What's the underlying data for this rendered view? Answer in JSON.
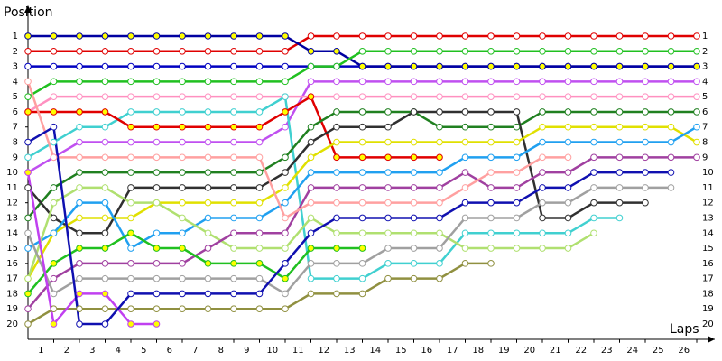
{
  "chart_data": {
    "type": "line",
    "y_label": "Position",
    "x_label": "Laps",
    "x": [
      0,
      1,
      2,
      3,
      4,
      5,
      6,
      7,
      8,
      9,
      10,
      11,
      12,
      13,
      14,
      15,
      16,
      17,
      18,
      19,
      20,
      21,
      22,
      23,
      24,
      25,
      26
    ],
    "xlim": [
      0,
      26
    ],
    "xticks": [
      1,
      2,
      3,
      4,
      5,
      6,
      7,
      8,
      9,
      10,
      11,
      12,
      13,
      14,
      15,
      16,
      17,
      18,
      19,
      20,
      21,
      22,
      23,
      24,
      25,
      26
    ],
    "ylim": [
      0,
      21
    ],
    "y_inverted": true,
    "yticks": [
      1,
      2,
      3,
      4,
      5,
      6,
      7,
      8,
      9,
      10,
      11,
      12,
      13,
      14,
      15,
      16,
      17,
      18,
      19,
      20
    ],
    "series": [
      {
        "color": "#e00000",
        "marker_color": "#ffffff",
        "values": [
          2,
          2,
          2,
          2,
          2,
          2,
          2,
          2,
          2,
          2,
          2,
          1,
          1,
          1,
          1,
          1,
          1,
          1,
          1,
          1,
          1,
          1,
          1,
          1,
          1,
          1,
          1
        ]
      },
      {
        "color": "#0000c0",
        "marker_color": "#ffffff",
        "values": [
          3,
          3,
          3,
          3,
          3,
          3,
          3,
          3,
          3,
          3,
          3,
          3,
          3,
          3,
          3,
          3,
          3,
          3,
          3,
          3,
          3,
          3,
          3,
          3,
          3,
          3,
          3
        ]
      },
      {
        "color": "#0000a0",
        "marker_color": "#ffff00",
        "values": [
          1,
          1,
          1,
          1,
          1,
          1,
          1,
          1,
          1,
          1,
          1,
          2,
          2,
          3,
          3,
          3,
          3,
          3,
          3,
          3,
          3,
          3,
          3,
          3,
          3,
          3,
          3
        ]
      },
      {
        "color": "#20c020",
        "marker_color": "#ffffff",
        "values": [
          5,
          4,
          4,
          4,
          4,
          4,
          4,
          4,
          4,
          4,
          4,
          3,
          3,
          2,
          2,
          2,
          2,
          2,
          2,
          2,
          2,
          2,
          2,
          2,
          2,
          2,
          2
        ]
      },
      {
        "color": "#c050f0",
        "marker_color": "#ffffff",
        "values": [
          10,
          9,
          8,
          8,
          8,
          8,
          8,
          8,
          8,
          8,
          7,
          4,
          4,
          4,
          4,
          4,
          4,
          4,
          4,
          4,
          4,
          4,
          4,
          4,
          4,
          4,
          4
        ]
      },
      {
        "color": "#ff90c0",
        "marker_color": "#ffffff",
        "values": [
          6,
          5,
          5,
          5,
          5,
          5,
          5,
          5,
          5,
          5,
          5,
          5,
          5,
          5,
          5,
          5,
          5,
          5,
          5,
          5,
          5,
          5,
          5,
          5,
          5,
          5,
          5
        ]
      },
      {
        "color": "#40d0d0",
        "marker_color": "#ffffff",
        "values": [
          9,
          8,
          7,
          7,
          6,
          6,
          6,
          6,
          6,
          6,
          5,
          17,
          17,
          17,
          16,
          16,
          16,
          14,
          14,
          14,
          14,
          14,
          13,
          13,
          null,
          null,
          null
        ]
      },
      {
        "color": "#e00000",
        "marker_color": "#ffff00",
        "values": [
          6,
          6,
          6,
          6,
          7,
          7,
          7,
          7,
          7,
          7,
          6,
          5,
          9,
          9,
          9,
          9,
          9,
          null,
          null,
          null,
          null,
          null,
          null,
          null,
          null,
          null,
          null
        ]
      },
      {
        "color": "#208020",
        "marker_color": "#ffffff",
        "values": [
          13,
          11,
          10,
          10,
          10,
          10,
          10,
          10,
          10,
          10,
          9,
          7,
          6,
          6,
          6,
          6,
          7,
          7,
          7,
          7,
          6,
          6,
          6,
          6,
          6,
          6,
          6
        ]
      },
      {
        "color": "#303030",
        "marker_color": "#ffffff",
        "values": [
          11,
          13,
          14,
          14,
          11,
          11,
          11,
          11,
          11,
          11,
          10,
          8,
          7,
          7,
          7,
          6,
          6,
          6,
          6,
          6,
          13,
          13,
          12,
          12,
          12,
          null,
          null
        ]
      },
      {
        "color": "#e0e000",
        "marker_color": "#ffffff",
        "values": [
          17,
          14,
          13,
          13,
          13,
          12,
          12,
          12,
          12,
          12,
          11,
          9,
          8,
          8,
          8,
          8,
          8,
          8,
          8,
          8,
          7,
          7,
          7,
          7,
          7,
          7,
          8
        ]
      },
      {
        "color": "#20a0f0",
        "marker_color": "#ffffff",
        "values": [
          15,
          14,
          12,
          12,
          15,
          14,
          14,
          13,
          13,
          13,
          12,
          10,
          10,
          10,
          10,
          10,
          10,
          9,
          9,
          9,
          8,
          8,
          8,
          8,
          8,
          8,
          7
        ]
      },
      {
        "color": "#909040",
        "marker_color": "#ffffff",
        "values": [
          20,
          19,
          19,
          19,
          19,
          19,
          19,
          19,
          19,
          19,
          19,
          18,
          18,
          18,
          17,
          17,
          17,
          16,
          16,
          null,
          null,
          null,
          null,
          null,
          null,
          null,
          null
        ]
      },
      {
        "color": "#b0e070",
        "marker_color": "#ffffff",
        "values": [
          17,
          12,
          11,
          11,
          12,
          12,
          13,
          14,
          15,
          15,
          15,
          13,
          14,
          14,
          14,
          14,
          14,
          15,
          15,
          15,
          15,
          15,
          14,
          null,
          null,
          null,
          null
        ]
      },
      {
        "color": "#a040a0",
        "marker_color": "#ffffff",
        "values": [
          19,
          17,
          16,
          16,
          16,
          16,
          16,
          15,
          14,
          14,
          14,
          11,
          11,
          11,
          11,
          11,
          11,
          10,
          11,
          11,
          10,
          10,
          9,
          9,
          9,
          9,
          9
        ]
      },
      {
        "color": "#a0a0a0",
        "marker_color": "#ffffff",
        "values": [
          14,
          18,
          17,
          17,
          17,
          17,
          17,
          17,
          17,
          17,
          18,
          16,
          16,
          16,
          15,
          15,
          15,
          13,
          13,
          13,
          12,
          12,
          11,
          11,
          11,
          11,
          null
        ]
      },
      {
        "color": "#20c020",
        "marker_color": "#ffff00",
        "values": [
          18,
          16,
          15,
          15,
          14,
          15,
          15,
          16,
          16,
          16,
          17,
          15,
          15,
          15,
          null,
          null,
          null,
          null,
          null,
          null,
          null,
          null,
          null,
          null,
          null,
          null,
          null
        ]
      },
      {
        "color": "#c040f0",
        "marker_color": "#ffff00",
        "values": [
          10,
          20,
          18,
          18,
          20,
          20,
          null,
          null,
          null,
          null,
          null,
          null,
          null,
          null,
          null,
          null,
          null,
          null,
          null,
          null,
          null,
          null,
          null,
          null,
          null,
          null,
          null
        ]
      },
      {
        "color": "#ffa0a0",
        "marker_color": "#ffffff",
        "values": [
          4,
          9,
          9,
          9,
          9,
          9,
          9,
          9,
          9,
          9,
          13,
          12,
          12,
          12,
          12,
          12,
          12,
          11,
          10,
          10,
          9,
          9,
          null,
          null,
          null,
          null,
          null
        ]
      },
      {
        "color": "#1010b0",
        "marker_color": "#ffffff",
        "values": [
          8,
          7,
          20,
          20,
          18,
          18,
          18,
          18,
          18,
          18,
          16,
          14,
          13,
          13,
          13,
          13,
          13,
          12,
          12,
          12,
          11,
          11,
          10,
          10,
          10,
          10,
          null
        ]
      }
    ]
  }
}
